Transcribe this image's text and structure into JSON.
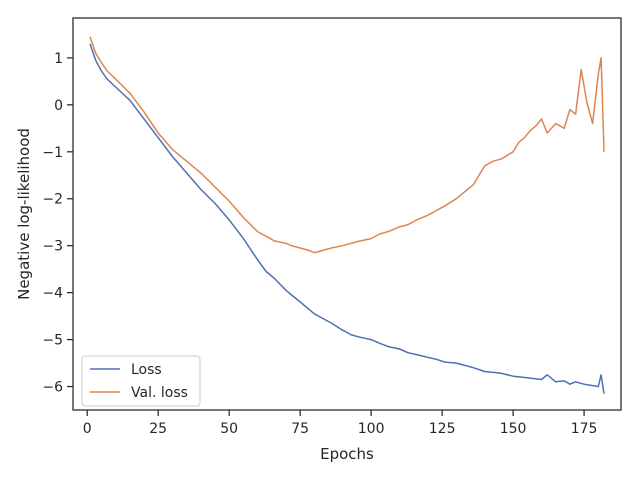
{
  "chart_data": {
    "type": "line",
    "xlabel": "Epochs",
    "ylabel": "Negative log-likelihood",
    "xlim": [
      -5,
      188
    ],
    "ylim": [
      -6.5,
      1.85
    ],
    "xticks": [
      0,
      25,
      50,
      75,
      100,
      125,
      150,
      175
    ],
    "yticks": [
      1,
      0,
      -1,
      -2,
      -3,
      -4,
      -5,
      -6
    ],
    "grid": false,
    "legend": "bottom-left",
    "series": [
      {
        "name": "Loss",
        "color": "#4c72b0",
        "x": [
          1,
          3,
          5,
          7,
          10,
          15,
          20,
          25,
          30,
          35,
          40,
          45,
          50,
          55,
          60,
          63,
          66,
          70,
          72,
          75,
          78,
          80,
          83,
          86,
          90,
          93,
          96,
          100,
          103,
          106,
          110,
          113,
          116,
          120,
          123,
          126,
          130,
          133,
          136,
          140,
          143,
          146,
          150,
          153,
          156,
          160,
          162,
          165,
          168,
          170,
          172,
          175,
          178,
          180,
          181,
          182
        ],
        "y": [
          1.3,
          0.95,
          0.72,
          0.55,
          0.38,
          0.1,
          -0.3,
          -0.7,
          -1.1,
          -1.45,
          -1.8,
          -2.1,
          -2.45,
          -2.85,
          -3.3,
          -3.55,
          -3.7,
          -3.95,
          -4.05,
          -4.2,
          -4.35,
          -4.45,
          -4.55,
          -4.65,
          -4.8,
          -4.9,
          -4.95,
          -5.0,
          -5.08,
          -5.15,
          -5.2,
          -5.28,
          -5.32,
          -5.38,
          -5.42,
          -5.48,
          -5.5,
          -5.55,
          -5.6,
          -5.68,
          -5.7,
          -5.72,
          -5.78,
          -5.8,
          -5.82,
          -5.85,
          -5.75,
          -5.9,
          -5.88,
          -5.95,
          -5.9,
          -5.95,
          -5.98,
          -6.0,
          -5.75,
          -6.15
        ]
      },
      {
        "name": "Val. loss",
        "color": "#dd8452",
        "x": [
          1,
          3,
          5,
          7,
          10,
          15,
          20,
          25,
          30,
          35,
          40,
          45,
          50,
          55,
          60,
          63,
          66,
          70,
          72,
          75,
          78,
          80,
          83,
          86,
          90,
          93,
          96,
          100,
          103,
          106,
          110,
          113,
          116,
          120,
          123,
          126,
          130,
          133,
          136,
          138,
          140,
          143,
          146,
          150,
          152,
          154,
          156,
          158,
          160,
          162,
          165,
          168,
          170,
          172,
          174,
          176,
          178,
          180,
          181,
          182
        ],
        "y": [
          1.45,
          1.1,
          0.9,
          0.72,
          0.55,
          0.25,
          -0.15,
          -0.6,
          -0.95,
          -1.2,
          -1.45,
          -1.75,
          -2.05,
          -2.4,
          -2.7,
          -2.8,
          -2.9,
          -2.95,
          -3.0,
          -3.05,
          -3.1,
          -3.15,
          -3.1,
          -3.05,
          -3.0,
          -2.95,
          -2.9,
          -2.85,
          -2.75,
          -2.7,
          -2.6,
          -2.55,
          -2.45,
          -2.35,
          -2.25,
          -2.15,
          -2.0,
          -1.85,
          -1.7,
          -1.5,
          -1.3,
          -1.2,
          -1.15,
          -1.0,
          -0.8,
          -0.7,
          -0.55,
          -0.45,
          -0.3,
          -0.6,
          -0.4,
          -0.5,
          -0.1,
          -0.2,
          0.75,
          0.05,
          -0.4,
          0.65,
          1.0,
          -1.0
        ]
      }
    ]
  }
}
